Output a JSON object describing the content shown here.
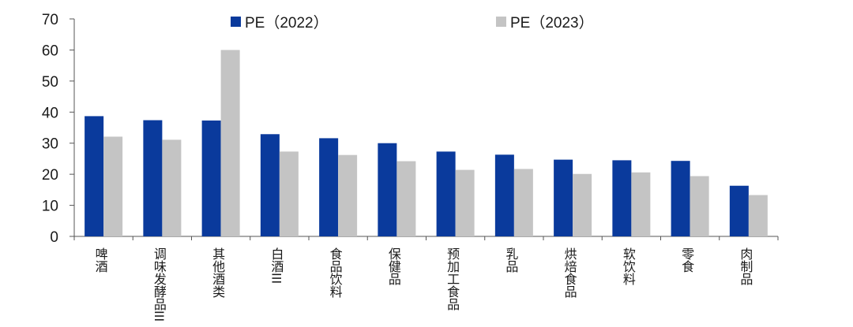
{
  "chart_data": {
    "type": "bar",
    "categories": [
      "啤酒",
      "调味发酵品III",
      "其他酒类",
      "白酒III",
      "食品饮料",
      "保健品",
      "预加工食品",
      "乳品",
      "烘焙食品",
      "软饮料",
      "零食",
      "肉制品"
    ],
    "series": [
      {
        "name": "PE（2022）",
        "color": "#0a3a9c",
        "values": [
          38.7,
          37.4,
          37.3,
          32.9,
          31.6,
          30.0,
          27.3,
          26.3,
          24.7,
          24.5,
          24.3,
          16.3
        ]
      },
      {
        "name": "PE（2023）",
        "color": "#c4c4c4",
        "values": [
          32.1,
          31.1,
          60.0,
          27.3,
          26.2,
          24.2,
          21.4,
          21.7,
          20.1,
          20.6,
          19.4,
          13.3
        ]
      }
    ],
    "yticks": [
      0,
      10,
      20,
      30,
      40,
      50,
      60,
      70
    ],
    "ylim": [
      0,
      70
    ],
    "legend_position": "top",
    "grid": false
  }
}
